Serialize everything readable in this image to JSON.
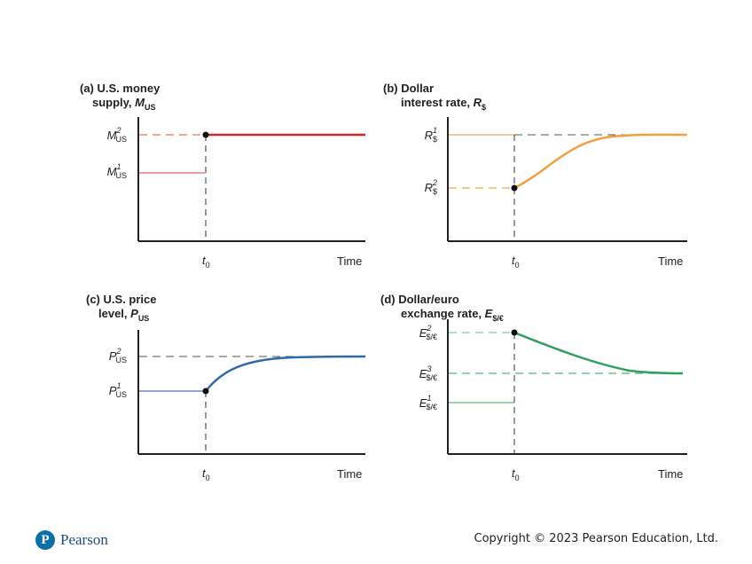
{
  "panels": {
    "a": {
      "title_line1": "(a) U.S. money",
      "title_line2": "supply, ",
      "title_var": "M",
      "title_sub": "US",
      "level_high": {
        "base": "M",
        "sup": "2",
        "sub": "US"
      },
      "level_low": {
        "base": "M",
        "sup": "1",
        "sub": "US"
      },
      "x_tick": {
        "base": "t",
        "sub": "0"
      },
      "x_label": "Time",
      "line_color": "#c9262f",
      "line_color_light": "#eaa0a0"
    },
    "b": {
      "title_line1": "(b) Dollar",
      "title_line2": "interest rate, ",
      "title_var": "R",
      "title_sub": "$",
      "level_high": {
        "base": "R",
        "sup": "1",
        "sub": "$"
      },
      "level_low": {
        "base": "R",
        "sup": "2",
        "sub": "$"
      },
      "x_tick": {
        "base": "t",
        "sub": "0"
      },
      "x_label": "Time",
      "line_color": "#f0a040",
      "line_color_light": "#f6c894"
    },
    "c": {
      "title_line1": "(c) U.S. price",
      "title_line2": "level, ",
      "title_var": "P",
      "title_sub": "US",
      "level_high": {
        "base": "P",
        "sup": "2",
        "sub": "US"
      },
      "level_low": {
        "base": "P",
        "sup": "1",
        "sub": "US"
      },
      "x_tick": {
        "base": "t",
        "sub": "0"
      },
      "x_label": "Time",
      "line_color": "#2f6aa8",
      "line_color_light": "#8ea8d8"
    },
    "d": {
      "title_line1": "(d) Dollar/euro",
      "title_line2": "exchange rate, ",
      "title_var": "E",
      "title_sub": "$/€",
      "level_top": {
        "base": "E",
        "sup": "2",
        "sub": "$/€"
      },
      "level_mid": {
        "base": "E",
        "sup": "3",
        "sub": "$/€"
      },
      "level_low": {
        "base": "E",
        "sup": "1",
        "sub": "$/€"
      },
      "x_tick": {
        "base": "t",
        "sub": "0"
      },
      "x_label": "Time",
      "line_color": "#2f9e5e",
      "line_color_light": "#9ad2b0"
    }
  },
  "colors": {
    "axis": "#222222",
    "dash_ref": "#555555"
  },
  "footer": {
    "logo_letter": "P",
    "logo_text": "Pearson",
    "copyright": "Copyright © 2023 Pearson Education, Ltd."
  }
}
